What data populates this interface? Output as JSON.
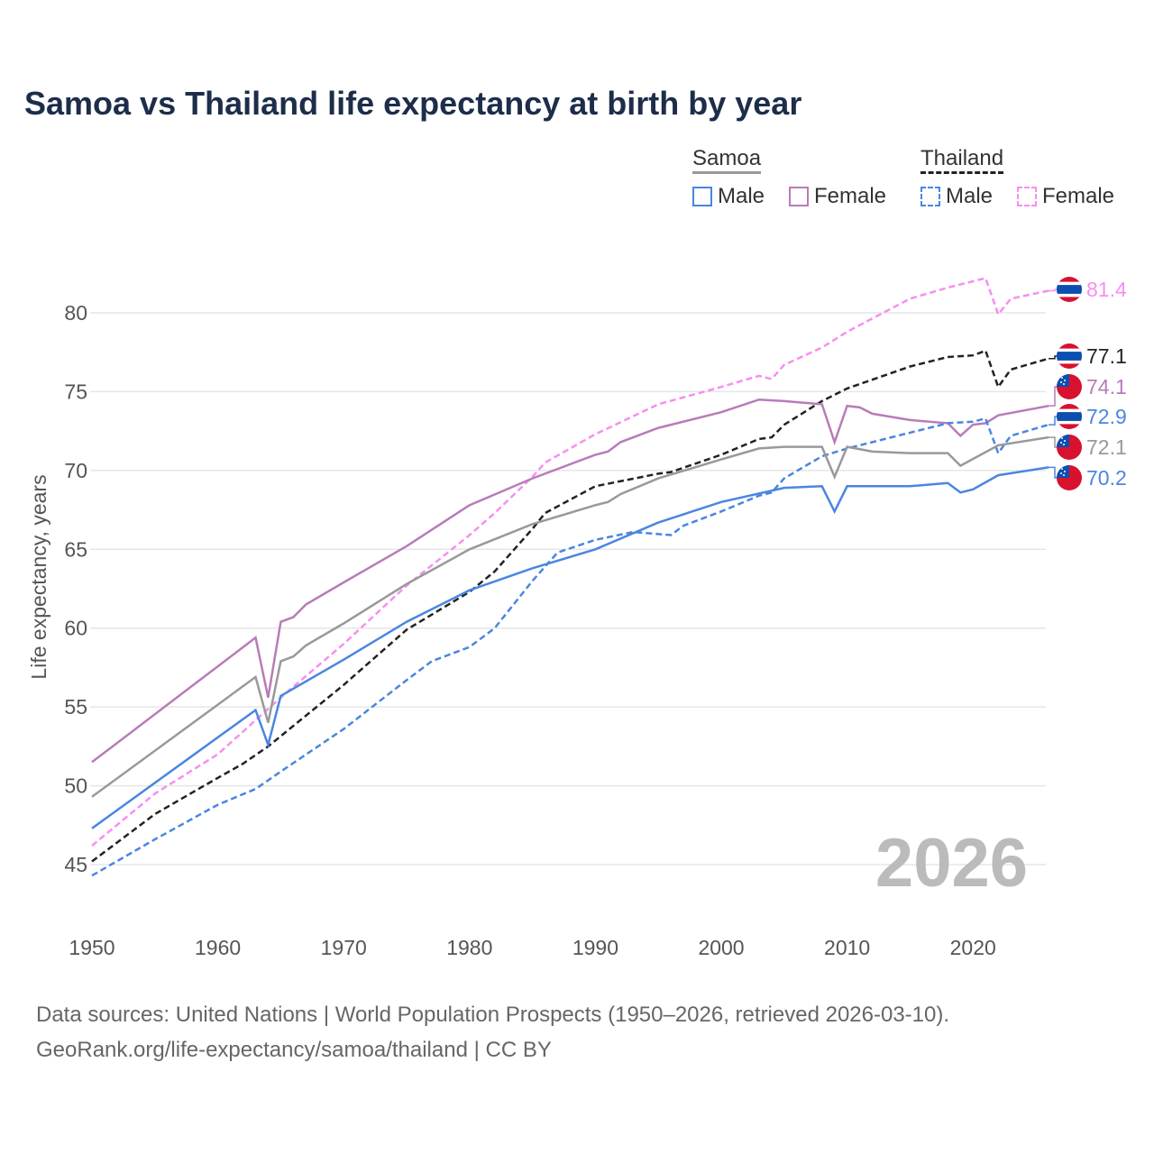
{
  "title": "Samoa vs Thailand life expectancy at birth by year",
  "legend": {
    "groups": [
      {
        "name": "Samoa",
        "items": [
          "Male",
          "Female"
        ]
      },
      {
        "name": "Thailand",
        "items": [
          "Male",
          "Female"
        ]
      }
    ]
  },
  "watermark_year": "2026",
  "footer": {
    "line1": "Data sources: United Nations | World Population Prospects (1950–2026, retrieved 2026-03-10).",
    "line2": "GeoRank.org/life-expectancy/samoa/thailand | CC BY"
  },
  "chart_data": {
    "type": "line",
    "title": "Samoa vs Thailand life expectancy at birth by year",
    "xlabel": "",
    "ylabel": "Life expectancy, years",
    "xlim": [
      1950,
      2026
    ],
    "ylim": [
      45,
      80
    ],
    "xticks": [
      1950,
      1960,
      1970,
      1980,
      1990,
      2000,
      2010,
      2020
    ],
    "yticks": [
      45,
      50,
      55,
      60,
      65,
      70,
      75,
      80
    ],
    "grid": true,
    "legend_placement": "top-right",
    "series": [
      {
        "name": "Thailand Female",
        "country": "Thailand",
        "color": "#f78ef0",
        "dash": true,
        "end_label": "81.4",
        "x": [
          1950,
          1955,
          1960,
          1965,
          1970,
          1975,
          1980,
          1982,
          1985,
          1986,
          1990,
          1995,
          2000,
          2003,
          2004,
          2005,
          2008,
          2010,
          2015,
          2018,
          2020,
          2021,
          2022,
          2023,
          2026
        ],
        "y": [
          46.2,
          49.5,
          52.0,
          55.6,
          59.0,
          62.7,
          65.9,
          67.3,
          69.6,
          70.5,
          72.3,
          74.2,
          75.3,
          76.0,
          75.8,
          76.7,
          77.8,
          78.8,
          80.9,
          81.6,
          82.0,
          82.2,
          79.9,
          80.9,
          81.4
        ]
      },
      {
        "name": "Thailand",
        "country": "Thailand",
        "color": "#222222",
        "dash": true,
        "end_label": "77.1",
        "x": [
          1950,
          1955,
          1960,
          1962,
          1964,
          1970,
          1975,
          1980,
          1982,
          1985,
          1986,
          1990,
          1995,
          1996,
          2000,
          2003,
          2004,
          2005,
          2008,
          2010,
          2015,
          2018,
          2020,
          2021,
          2022,
          2023,
          2026
        ],
        "y": [
          45.2,
          48.2,
          50.5,
          51.4,
          52.5,
          56.4,
          59.9,
          62.3,
          63.6,
          66.3,
          67.3,
          69.0,
          69.8,
          69.9,
          71.0,
          72.0,
          72.1,
          72.9,
          74.4,
          75.2,
          76.6,
          77.2,
          77.3,
          77.6,
          75.3,
          76.4,
          77.1
        ]
      },
      {
        "name": "Samoa Female",
        "country": "Samoa",
        "color": "#b77cb9",
        "dash": false,
        "end_label": "74.1",
        "x": [
          1950,
          1963,
          1964,
          1965,
          1966,
          1967,
          1970,
          1975,
          1980,
          1985,
          1990,
          1991,
          1992,
          1995,
          2000,
          2003,
          2005,
          2008,
          2009,
          2010,
          2011,
          2012,
          2015,
          2018,
          2019,
          2020,
          2021,
          2022,
          2026
        ],
        "y": [
          51.5,
          59.4,
          55.6,
          60.4,
          60.7,
          61.5,
          62.9,
          65.2,
          67.8,
          69.5,
          71.0,
          71.2,
          71.8,
          72.7,
          73.7,
          74.5,
          74.4,
          74.2,
          71.8,
          74.1,
          74.0,
          73.6,
          73.2,
          73.0,
          72.2,
          72.9,
          73.0,
          73.5,
          74.1
        ]
      },
      {
        "name": "Thailand Male",
        "country": "Thailand",
        "color": "#4a86e0",
        "dash": true,
        "end_label": "72.9",
        "x": [
          1950,
          1955,
          1960,
          1963,
          1965,
          1970,
          1975,
          1977,
          1980,
          1982,
          1985,
          1987,
          1990,
          1993,
          1996,
          1997,
          2000,
          2003,
          2004,
          2005,
          2008,
          2010,
          2015,
          2018,
          2020,
          2021,
          2022,
          2023,
          2026
        ],
        "y": [
          44.3,
          46.6,
          48.8,
          49.8,
          50.9,
          53.6,
          56.7,
          57.9,
          58.8,
          60.0,
          63.0,
          64.8,
          65.6,
          66.1,
          65.9,
          66.5,
          67.4,
          68.4,
          68.6,
          69.5,
          70.9,
          71.4,
          72.4,
          73.0,
          73.1,
          73.3,
          71.1,
          72.2,
          72.9
        ]
      },
      {
        "name": "Samoa",
        "country": "Samoa",
        "color": "#999999",
        "dash": false,
        "end_label": "72.1",
        "x": [
          1950,
          1963,
          1964,
          1965,
          1966,
          1967,
          1970,
          1975,
          1980,
          1985,
          1990,
          1991,
          1992,
          1995,
          2000,
          2003,
          2005,
          2008,
          2009,
          2010,
          2012,
          2015,
          2018,
          2019,
          2022,
          2026
        ],
        "y": [
          49.3,
          56.9,
          54.0,
          57.9,
          58.2,
          58.9,
          60.3,
          62.8,
          65.0,
          66.6,
          67.8,
          68.0,
          68.5,
          69.5,
          70.7,
          71.4,
          71.5,
          71.5,
          69.6,
          71.5,
          71.2,
          71.1,
          71.1,
          70.3,
          71.6,
          72.1
        ]
      },
      {
        "name": "Samoa Male",
        "country": "Samoa",
        "color": "#4a86e0",
        "dash": false,
        "end_label": "70.2",
        "x": [
          1950,
          1963,
          1964,
          1965,
          1970,
          1975,
          1980,
          1985,
          1990,
          1995,
          2000,
          2005,
          2008,
          2009,
          2010,
          2015,
          2018,
          2019,
          2020,
          2022,
          2026
        ],
        "y": [
          47.3,
          54.8,
          52.6,
          55.7,
          58.0,
          60.4,
          62.4,
          63.8,
          65.0,
          66.7,
          68.0,
          68.9,
          69.0,
          67.4,
          69.0,
          69.0,
          69.2,
          68.6,
          68.8,
          69.7,
          70.2
        ]
      }
    ]
  }
}
